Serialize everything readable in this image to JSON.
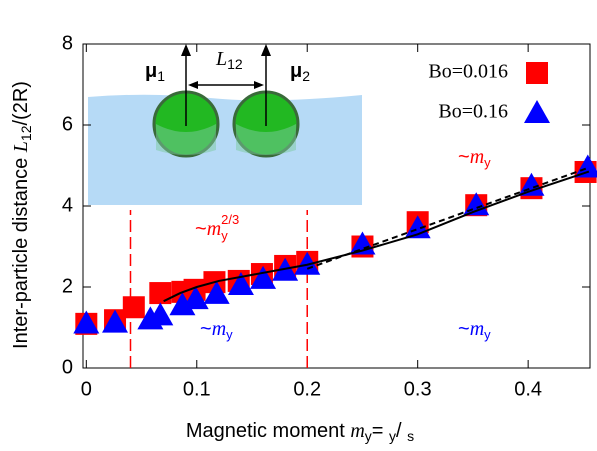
{
  "chart_data": {
    "type": "scatter",
    "xlabel_parts": [
      "Magnetic moment ",
      "m",
      "y",
      "= ",
      "y",
      "/ ",
      "s"
    ],
    "ylabel_parts": [
      "Inter-particle distance ",
      "L",
      "12",
      "/(2R)"
    ],
    "xlim": [
      -0.003,
      0.456
    ],
    "ylim": [
      0,
      8
    ],
    "xticks": [
      0,
      0.1,
      0.2,
      0.3,
      0.4
    ],
    "yticks": [
      0,
      2,
      4,
      6,
      8
    ],
    "series": [
      {
        "name": "Bo=0.016",
        "color": "#ff0000",
        "marker": "square",
        "x": [
          0,
          0.026,
          0.043,
          0.067,
          0.087,
          0.098,
          0.116,
          0.138,
          0.159,
          0.18,
          0.2,
          0.25,
          0.3,
          0.353,
          0.403,
          0.452
        ],
        "values": [
          1.09,
          1.18,
          1.5,
          1.85,
          1.88,
          1.93,
          2.12,
          2.15,
          2.32,
          2.52,
          2.62,
          3.0,
          3.6,
          4.02,
          4.44,
          4.84
        ]
      },
      {
        "name": "Bo=0.16",
        "color": "#0000ff",
        "marker": "triangle",
        "x": [
          0,
          0.026,
          0.058,
          0.067,
          0.087,
          0.099,
          0.118,
          0.14,
          0.16,
          0.18,
          0.2,
          0.25,
          0.3,
          0.353,
          0.403,
          0.454
        ],
        "values": [
          1.1,
          1.12,
          1.2,
          1.3,
          1.55,
          1.7,
          1.83,
          2.05,
          2.2,
          2.4,
          2.55,
          3.05,
          3.45,
          4.02,
          4.5,
          4.95
        ]
      }
    ],
    "lines": [
      {
        "color": "#000000",
        "dash": false,
        "x": [
          0.07,
          0.085,
          0.1,
          0.12,
          0.15,
          0.2,
          0.25,
          0.3,
          0.35,
          0.4,
          0.455
        ],
        "values": [
          1.65,
          1.85,
          2.0,
          2.15,
          2.3,
          2.55,
          2.9,
          3.3,
          3.85,
          4.35,
          4.85
        ]
      },
      {
        "color": "#000000",
        "dash": true,
        "x": [
          0.2,
          0.455
        ],
        "values": [
          2.45,
          4.95
        ]
      }
    ],
    "vlines": {
      "color": "#ff0000",
      "x": [
        0.04,
        0.2
      ],
      "top": 3.9
    },
    "annotations": [
      {
        "text": "~",
        "var": "m",
        "sub": "y",
        "sup": "2/3",
        "color": "#ff0000"
      },
      {
        "text": "~",
        "var": "m",
        "sub": "y",
        "color": "#ff0000"
      },
      {
        "text": "~",
        "var": "m",
        "sub": "y",
        "color": "#0000ff"
      },
      {
        "text": "~",
        "var": "m",
        "sub": "y",
        "color": "#0000ff"
      }
    ],
    "inset_labels": {
      "mu": "μ",
      "mu1": "1",
      "L": "L",
      "L12": "12",
      "mu2": "2"
    }
  }
}
